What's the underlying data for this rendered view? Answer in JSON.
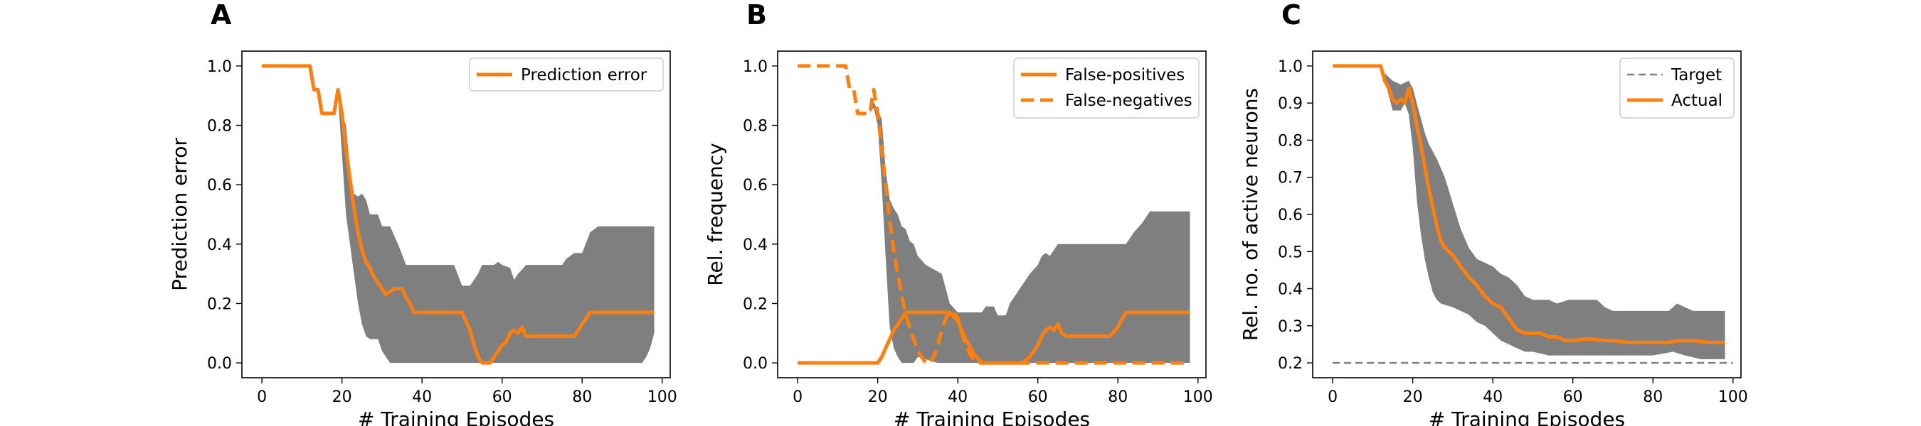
{
  "chart_data": [
    {
      "type": "line",
      "panel_label": "A",
      "xlabel": "# Training Episodes",
      "ylabel": "Prediction error",
      "xlim": [
        -5,
        102
      ],
      "ylim": [
        -0.05,
        1.05
      ],
      "xticks": [
        "0",
        "20",
        "40",
        "60",
        "80",
        "100"
      ],
      "xtick_values": [
        0,
        20,
        40,
        60,
        80,
        100
      ],
      "yticks": [
        "0.0",
        "0.2",
        "0.4",
        "0.6",
        "0.8",
        "1.0"
      ],
      "ytick_values": [
        0,
        0.2,
        0.4,
        0.6,
        0.8,
        1.0
      ],
      "grid": false,
      "legend_position": "top-right",
      "band_color": "#7f7f7f",
      "band": {
        "upper": [
          [
            0,
            1.0
          ],
          [
            12,
            1.0
          ],
          [
            13,
            0.92
          ],
          [
            14,
            0.92
          ],
          [
            15,
            0.84
          ],
          [
            18,
            0.84
          ],
          [
            19,
            0.92
          ],
          [
            20,
            0.84
          ],
          [
            21,
            0.8
          ],
          [
            22,
            0.65
          ],
          [
            23,
            0.57
          ],
          [
            24,
            0.56
          ],
          [
            25,
            0.57
          ],
          [
            26,
            0.55
          ],
          [
            27,
            0.5
          ],
          [
            29,
            0.5
          ],
          [
            30,
            0.46
          ],
          [
            32,
            0.46
          ],
          [
            34,
            0.4
          ],
          [
            36,
            0.33
          ],
          [
            48,
            0.33
          ],
          [
            50,
            0.26
          ],
          [
            52,
            0.26
          ],
          [
            54,
            0.3
          ],
          [
            55,
            0.33
          ],
          [
            58,
            0.33
          ],
          [
            59,
            0.34
          ],
          [
            60,
            0.33
          ],
          [
            62,
            0.32
          ],
          [
            63,
            0.28
          ],
          [
            64,
            0.3
          ],
          [
            66,
            0.33
          ],
          [
            75,
            0.33
          ],
          [
            76,
            0.35
          ],
          [
            78,
            0.37
          ],
          [
            80,
            0.37
          ],
          [
            82,
            0.44
          ],
          [
            84,
            0.46
          ],
          [
            98,
            0.46
          ]
        ],
        "lower": [
          [
            0,
            1.0
          ],
          [
            12,
            1.0
          ],
          [
            13,
            0.92
          ],
          [
            14,
            0.92
          ],
          [
            15,
            0.84
          ],
          [
            18,
            0.84
          ],
          [
            19,
            0.9
          ],
          [
            20,
            0.7
          ],
          [
            21,
            0.5
          ],
          [
            22,
            0.4
          ],
          [
            23,
            0.3
          ],
          [
            24,
            0.2
          ],
          [
            25,
            0.13
          ],
          [
            26,
            0.09
          ],
          [
            27,
            0.08
          ],
          [
            29,
            0.08
          ],
          [
            30,
            0.04
          ],
          [
            32,
            0.0
          ],
          [
            95,
            0.0
          ],
          [
            96,
            0.02
          ],
          [
            97,
            0.05
          ],
          [
            98,
            0.1
          ]
        ]
      },
      "series": [
        {
          "name": "Prediction error",
          "color": "#ff7f0e",
          "dash": "solid",
          "x": [
            0,
            12,
            13,
            14,
            15,
            18,
            19,
            20,
            21,
            22,
            23,
            24,
            25,
            26,
            27,
            28,
            29,
            30,
            31,
            32,
            33,
            34,
            35,
            36,
            37,
            38,
            48,
            50,
            52,
            53,
            54,
            55,
            56,
            57,
            58,
            59,
            60,
            61,
            62,
            63,
            64,
            65,
            66,
            76,
            78,
            80,
            82,
            98
          ],
          "y": [
            1.0,
            1.0,
            0.92,
            0.92,
            0.84,
            0.84,
            0.92,
            0.84,
            0.72,
            0.62,
            0.52,
            0.44,
            0.38,
            0.34,
            0.32,
            0.29,
            0.27,
            0.25,
            0.23,
            0.24,
            0.25,
            0.25,
            0.25,
            0.22,
            0.2,
            0.17,
            0.17,
            0.17,
            0.11,
            0.06,
            0.02,
            0.0,
            0.0,
            0.0,
            0.02,
            0.04,
            0.06,
            0.07,
            0.1,
            0.11,
            0.1,
            0.12,
            0.09,
            0.09,
            0.09,
            0.13,
            0.17,
            0.17
          ]
        }
      ]
    },
    {
      "type": "line",
      "panel_label": "B",
      "xlabel": "# Training Episodes",
      "ylabel": "Rel. frequency",
      "xlim": [
        -5,
        102
      ],
      "ylim": [
        -0.05,
        1.05
      ],
      "xticks": [
        "0",
        "20",
        "40",
        "60",
        "80",
        "100"
      ],
      "xtick_values": [
        0,
        20,
        40,
        60,
        80,
        100
      ],
      "yticks": [
        "0.0",
        "0.2",
        "0.4",
        "0.6",
        "0.8",
        "1.0"
      ],
      "ytick_values": [
        0,
        0.2,
        0.4,
        0.6,
        0.8,
        1.0
      ],
      "grid": false,
      "legend_position": "top-right",
      "band_color": "#7f7f7f",
      "band": {
        "upper": [
          [
            18,
            0.84
          ],
          [
            19,
            0.88
          ],
          [
            20,
            0.85
          ],
          [
            21,
            0.82
          ],
          [
            22,
            0.65
          ],
          [
            23,
            0.55
          ],
          [
            24,
            0.52
          ],
          [
            25,
            0.5
          ],
          [
            26,
            0.46
          ],
          [
            27,
            0.45
          ],
          [
            28,
            0.41
          ],
          [
            29,
            0.4
          ],
          [
            30,
            0.36
          ],
          [
            32,
            0.33
          ],
          [
            36,
            0.3
          ],
          [
            38,
            0.2
          ],
          [
            40,
            0.17
          ],
          [
            46,
            0.17
          ],
          [
            47,
            0.19
          ],
          [
            49,
            0.19
          ],
          [
            50,
            0.16
          ],
          [
            52,
            0.16
          ],
          [
            53,
            0.2
          ],
          [
            54,
            0.22
          ],
          [
            56,
            0.26
          ],
          [
            58,
            0.3
          ],
          [
            60,
            0.33
          ],
          [
            61,
            0.36
          ],
          [
            62,
            0.37
          ],
          [
            63,
            0.36
          ],
          [
            64,
            0.38
          ],
          [
            65,
            0.4
          ],
          [
            82,
            0.4
          ],
          [
            84,
            0.44
          ],
          [
            86,
            0.47
          ],
          [
            88,
            0.51
          ],
          [
            98,
            0.51
          ]
        ],
        "lower": [
          [
            18,
            0.84
          ],
          [
            19,
            0.86
          ],
          [
            20,
            0.8
          ],
          [
            21,
            0.6
          ],
          [
            22,
            0.35
          ],
          [
            23,
            0.12
          ],
          [
            24,
            0.05
          ],
          [
            25,
            0.02
          ],
          [
            26,
            0.0
          ],
          [
            29,
            0.0
          ],
          [
            30,
            0.02
          ],
          [
            35,
            0.0
          ],
          [
            98,
            0.0
          ]
        ]
      },
      "series": [
        {
          "name": "False-positives",
          "color": "#ff7f0e",
          "dash": "solid",
          "x": [
            0,
            20,
            21,
            22,
            23,
            24,
            25,
            26,
            27,
            28,
            38,
            40,
            42,
            44,
            46,
            48,
            56,
            58,
            59,
            60,
            61,
            62,
            63,
            64,
            65,
            66,
            67,
            76,
            78,
            80,
            82,
            98
          ],
          "y": [
            0,
            0,
            0.02,
            0.05,
            0.08,
            0.11,
            0.13,
            0.15,
            0.17,
            0.17,
            0.17,
            0.14,
            0.08,
            0.03,
            0.0,
            0.0,
            0.0,
            0.02,
            0.04,
            0.06,
            0.09,
            0.11,
            0.12,
            0.11,
            0.13,
            0.1,
            0.09,
            0.09,
            0.09,
            0.12,
            0.17,
            0.17
          ]
        },
        {
          "name": "False-negatives",
          "color": "#ff7f0e",
          "dash": "dashed",
          "x": [
            0,
            12,
            13,
            14,
            15,
            18,
            19,
            20,
            21,
            22,
            23,
            24,
            25,
            26,
            27,
            28,
            29,
            30,
            31,
            32,
            33,
            34,
            35,
            36,
            37,
            38,
            39,
            40,
            41,
            42,
            43,
            44,
            45,
            46,
            98
          ],
          "y": [
            1.0,
            1.0,
            0.92,
            0.92,
            0.84,
            0.84,
            0.92,
            0.84,
            0.72,
            0.6,
            0.48,
            0.38,
            0.3,
            0.23,
            0.16,
            0.12,
            0.08,
            0.04,
            0.02,
            0.0,
            0.0,
            0.02,
            0.06,
            0.11,
            0.15,
            0.17,
            0.17,
            0.15,
            0.1,
            0.06,
            0.03,
            0.01,
            0.0,
            0.0,
            0.0
          ]
        }
      ]
    },
    {
      "type": "line",
      "panel_label": "C",
      "xlabel": "# Training Episodes",
      "ylabel": "Rel. no. of active neurons",
      "xlim": [
        -5,
        102
      ],
      "ylim": [
        0.16,
        1.04
      ],
      "xticks": [
        "0",
        "20",
        "40",
        "60",
        "80",
        "100"
      ],
      "xtick_values": [
        0,
        20,
        40,
        60,
        80,
        100
      ],
      "yticks": [
        "0.2",
        "0.3",
        "0.4",
        "0.5",
        "0.6",
        "0.7",
        "0.8",
        "0.9",
        "1.0"
      ],
      "ytick_values": [
        0.2,
        0.3,
        0.4,
        0.5,
        0.6,
        0.7,
        0.8,
        0.9,
        1.0
      ],
      "grid": false,
      "legend_position": "top-right",
      "band_color": "#7f7f7f",
      "band": {
        "upper": [
          [
            0,
            1.0
          ],
          [
            12,
            1.0
          ],
          [
            13,
            0.98
          ],
          [
            14,
            0.97
          ],
          [
            15,
            0.96
          ],
          [
            17,
            0.95
          ],
          [
            19,
            0.96
          ],
          [
            20,
            0.94
          ],
          [
            21,
            0.9
          ],
          [
            22,
            0.86
          ],
          [
            23,
            0.82
          ],
          [
            24,
            0.79
          ],
          [
            26,
            0.75
          ],
          [
            28,
            0.7
          ],
          [
            30,
            0.63
          ],
          [
            32,
            0.56
          ],
          [
            34,
            0.51
          ],
          [
            36,
            0.48
          ],
          [
            40,
            0.46
          ],
          [
            42,
            0.44
          ],
          [
            44,
            0.43
          ],
          [
            46,
            0.41
          ],
          [
            48,
            0.38
          ],
          [
            50,
            0.37
          ],
          [
            52,
            0.37
          ],
          [
            54,
            0.37
          ],
          [
            56,
            0.36
          ],
          [
            59,
            0.37
          ],
          [
            66,
            0.37
          ],
          [
            68,
            0.35
          ],
          [
            70,
            0.34
          ],
          [
            80,
            0.34
          ],
          [
            84,
            0.34
          ],
          [
            86,
            0.36
          ],
          [
            88,
            0.35
          ],
          [
            90,
            0.34
          ],
          [
            98,
            0.34
          ]
        ],
        "lower": [
          [
            0,
            1.0
          ],
          [
            12,
            1.0
          ],
          [
            13,
            0.96
          ],
          [
            14,
            0.92
          ],
          [
            15,
            0.88
          ],
          [
            17,
            0.88
          ],
          [
            18,
            0.9
          ],
          [
            19,
            0.87
          ],
          [
            20,
            0.78
          ],
          [
            21,
            0.64
          ],
          [
            22,
            0.55
          ],
          [
            23,
            0.48
          ],
          [
            24,
            0.43
          ],
          [
            25,
            0.39
          ],
          [
            26,
            0.37
          ],
          [
            27,
            0.36
          ],
          [
            30,
            0.35
          ],
          [
            34,
            0.33
          ],
          [
            36,
            0.31
          ],
          [
            38,
            0.3
          ],
          [
            40,
            0.28
          ],
          [
            42,
            0.26
          ],
          [
            44,
            0.25
          ],
          [
            46,
            0.24
          ],
          [
            48,
            0.23
          ],
          [
            50,
            0.23
          ],
          [
            54,
            0.22
          ],
          [
            60,
            0.22
          ],
          [
            70,
            0.22
          ],
          [
            80,
            0.22
          ],
          [
            85,
            0.23
          ],
          [
            88,
            0.22
          ],
          [
            92,
            0.21
          ],
          [
            98,
            0.21
          ]
        ]
      },
      "series": [
        {
          "name": "Target",
          "color": "#7f7f7f",
          "dash": "dashed",
          "x": [
            0,
            100
          ],
          "y": [
            0.2,
            0.2
          ]
        },
        {
          "name": "Actual",
          "color": "#ff7f0e",
          "dash": "solid",
          "x": [
            0,
            12,
            13,
            14,
            15,
            16,
            17,
            18,
            19,
            20,
            21,
            22,
            23,
            24,
            25,
            26,
            27,
            28,
            29,
            30,
            32,
            34,
            36,
            38,
            40,
            42,
            44,
            46,
            48,
            52,
            54,
            56,
            58,
            60,
            64,
            68,
            70,
            74,
            80,
            84,
            86,
            88,
            90,
            94,
            98
          ],
          "y": [
            1.0,
            1.0,
            0.96,
            0.94,
            0.91,
            0.9,
            0.91,
            0.9,
            0.94,
            0.9,
            0.84,
            0.79,
            0.73,
            0.67,
            0.62,
            0.57,
            0.53,
            0.51,
            0.5,
            0.49,
            0.46,
            0.43,
            0.41,
            0.38,
            0.36,
            0.35,
            0.32,
            0.29,
            0.28,
            0.28,
            0.27,
            0.27,
            0.26,
            0.26,
            0.265,
            0.26,
            0.26,
            0.255,
            0.255,
            0.255,
            0.26,
            0.26,
            0.26,
            0.255,
            0.255
          ]
        }
      ]
    }
  ]
}
